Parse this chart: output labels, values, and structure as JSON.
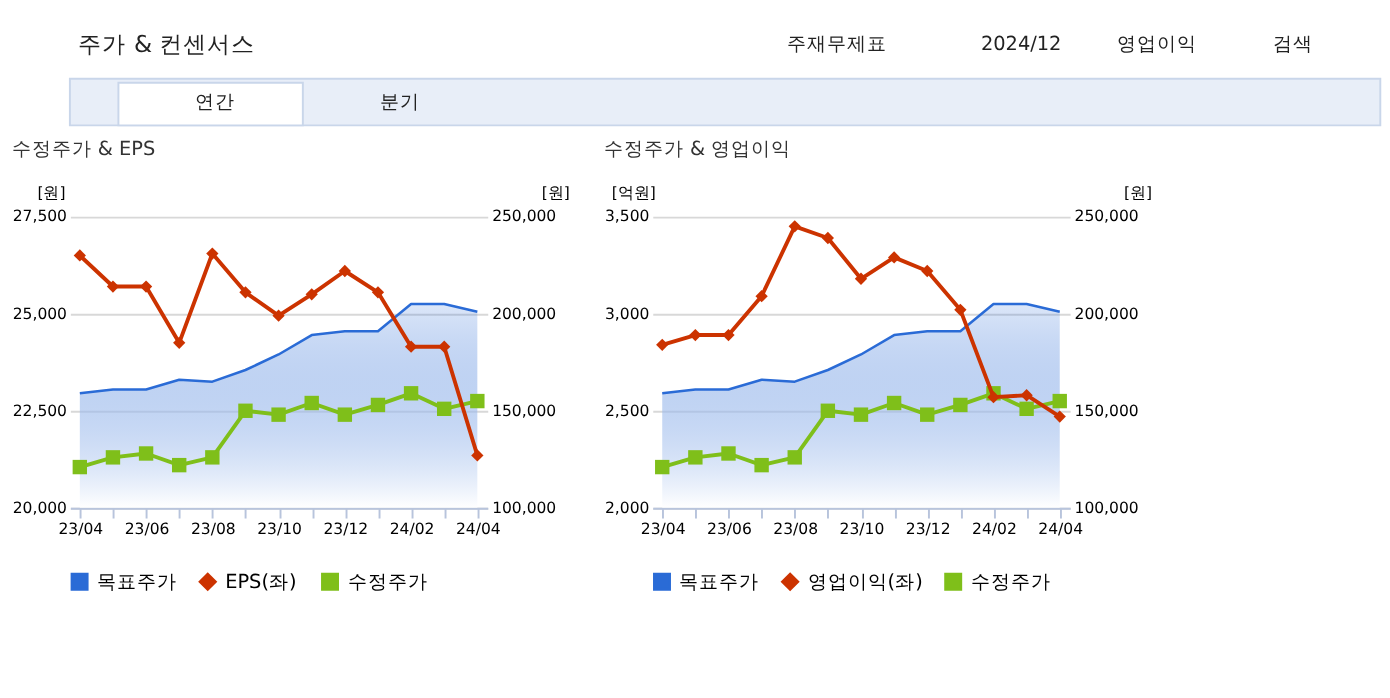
{
  "chart_data": [
    {
      "type": "other",
      "title": "주가 & 컨센서스",
      "annotations": [
        "주재무제표",
        "2024/12",
        "영업이익",
        "검색",
        "연간",
        "분기"
      ]
    },
    {
      "type": "line",
      "title": "수정주가 & EPS",
      "categories": [
        "23/04",
        null,
        "23/06",
        null,
        "23/08",
        null,
        "23/10",
        null,
        "23/12",
        null,
        "24/02",
        null,
        "24/04"
      ],
      "ylabel": "[원]",
      "y2label": "[원]",
      "ylim": [
        20000,
        27500
      ],
      "yticks": [
        {
          "value": 20000,
          "label": "20,000"
        },
        {
          "value": 22500,
          "label": "22,500"
        },
        {
          "value": 25000,
          "label": "25,000"
        },
        {
          "value": 27500,
          "label": "27,500"
        }
      ],
      "y2lim": [
        100000,
        250000
      ],
      "y2ticks": [
        {
          "value": 100000,
          "label": "100,000"
        },
        {
          "value": 150000,
          "label": "150,000"
        },
        {
          "value": 200000,
          "label": "200,000"
        },
        {
          "value": 250000,
          "label": "250,000"
        }
      ],
      "grid": "y",
      "legend": "bottom",
      "series": [
        {
          "name": "목표주가",
          "type": "area",
          "axis": "y2",
          "marker": "none",
          "color": "#2a6bd6",
          "values": [
            159000,
            161000,
            161000,
            166000,
            165000,
            171000,
            179000,
            189000,
            191000,
            191000,
            205000,
            205000,
            201000
          ]
        },
        {
          "name": "EPS(좌)",
          "type": "line",
          "axis": "y",
          "marker": "diamond",
          "color": "#cc3300",
          "values": [
            26500,
            25700,
            25700,
            24250,
            26550,
            25550,
            24950,
            25500,
            26100,
            25550,
            24150,
            24150,
            21350
          ]
        },
        {
          "name": "수정주가",
          "type": "line",
          "axis": "y2",
          "marker": "square",
          "color": "#7fbf1a",
          "values": [
            121000,
            126000,
            128000,
            122000,
            126000,
            150000,
            148000,
            154000,
            148000,
            153000,
            159000,
            151000,
            155000
          ]
        }
      ]
    },
    {
      "type": "line",
      "title": "수정주가 & 영업이익",
      "categories": [
        "23/04",
        null,
        "23/06",
        null,
        "23/08",
        null,
        "23/10",
        null,
        "23/12",
        null,
        "24/02",
        null,
        "24/04"
      ],
      "ylabel": "[억원]",
      "y2label": "[원]",
      "ylim": [
        2000,
        3500
      ],
      "yticks": [
        {
          "value": 2000,
          "label": "2,000"
        },
        {
          "value": 2500,
          "label": "2,500"
        },
        {
          "value": 3000,
          "label": "3,000"
        },
        {
          "value": 3500,
          "label": "3,500"
        }
      ],
      "y2lim": [
        100000,
        250000
      ],
      "y2ticks": [
        {
          "value": 100000,
          "label": "100,000"
        },
        {
          "value": 150000,
          "label": "150,000"
        },
        {
          "value": 200000,
          "label": "200,000"
        },
        {
          "value": 250000,
          "label": "250,000"
        }
      ],
      "grid": "y",
      "legend": "bottom",
      "series": [
        {
          "name": "목표주가",
          "type": "area",
          "axis": "y2",
          "marker": "none",
          "color": "#2a6bd6",
          "values": [
            159000,
            161000,
            161000,
            166000,
            165000,
            171000,
            179000,
            189000,
            191000,
            191000,
            205000,
            205000,
            201000
          ]
        },
        {
          "name": "영업이익(좌)",
          "type": "line",
          "axis": "y",
          "marker": "diamond",
          "color": "#cc3300",
          "values": [
            2840,
            2890,
            2890,
            3090,
            3450,
            3390,
            3180,
            3290,
            3220,
            3020,
            2570,
            2580,
            2470
          ]
        },
        {
          "name": "수정주가",
          "type": "line",
          "axis": "y2",
          "marker": "square",
          "color": "#7fbf1a",
          "values": [
            121000,
            126000,
            128000,
            122000,
            126000,
            150000,
            148000,
            154000,
            148000,
            153000,
            159000,
            151000,
            155000
          ]
        }
      ]
    }
  ]
}
